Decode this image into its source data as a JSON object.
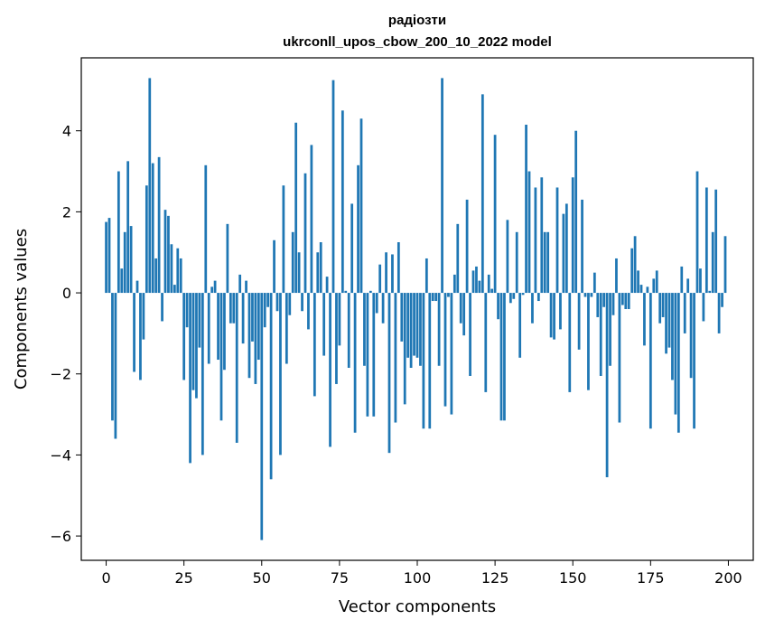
{
  "chart_data": {
    "type": "bar",
    "title": "радіозти",
    "subtitle": "ukrconll_upos_cbow_200_10_2022 model",
    "xlabel": "Vector components",
    "ylabel": "Components values",
    "xlim": [
      -8,
      208
    ],
    "ylim": [
      -6.6,
      5.8
    ],
    "xticks": [
      0,
      25,
      50,
      75,
      100,
      125,
      150,
      175,
      200
    ],
    "yticks": [
      -6,
      -4,
      -2,
      0,
      2,
      4
    ],
    "xtick_labels": [
      "0",
      "25",
      "50",
      "75",
      "100",
      "125",
      "150",
      "175",
      "200"
    ],
    "ytick_labels": [
      "−6",
      "−4",
      "−2",
      "0",
      "2",
      "4"
    ],
    "bar_color": "#1f77b4",
    "grid": false,
    "x": [
      0,
      1,
      2,
      3,
      4,
      5,
      6,
      7,
      8,
      9,
      10,
      11,
      12,
      13,
      14,
      15,
      16,
      17,
      18,
      19,
      20,
      21,
      22,
      23,
      24,
      25,
      26,
      27,
      28,
      29,
      30,
      31,
      32,
      33,
      34,
      35,
      36,
      37,
      38,
      39,
      40,
      41,
      42,
      43,
      44,
      45,
      46,
      47,
      48,
      49,
      50,
      51,
      52,
      53,
      54,
      55,
      56,
      57,
      58,
      59,
      60,
      61,
      62,
      63,
      64,
      65,
      66,
      67,
      68,
      69,
      70,
      71,
      72,
      73,
      74,
      75,
      76,
      77,
      78,
      79,
      80,
      81,
      82,
      83,
      84,
      85,
      86,
      87,
      88,
      89,
      90,
      91,
      92,
      93,
      94,
      95,
      96,
      97,
      98,
      99,
      100,
      101,
      102,
      103,
      104,
      105,
      106,
      107,
      108,
      109,
      110,
      111,
      112,
      113,
      114,
      115,
      116,
      117,
      118,
      119,
      120,
      121,
      122,
      123,
      124,
      125,
      126,
      127,
      128,
      129,
      130,
      131,
      132,
      133,
      134,
      135,
      136,
      137,
      138,
      139,
      140,
      141,
      142,
      143,
      144,
      145,
      146,
      147,
      148,
      149,
      150,
      151,
      152,
      153,
      154,
      155,
      156,
      157,
      158,
      159,
      160,
      161,
      162,
      163,
      164,
      165,
      166,
      167,
      168,
      169,
      170,
      171,
      172,
      173,
      174,
      175,
      176,
      177,
      178,
      179,
      180,
      181,
      182,
      183,
      184,
      185,
      186,
      187,
      188,
      189,
      190,
      191,
      192,
      193,
      194,
      195,
      196,
      197,
      198,
      199
    ],
    "values": [
      1.75,
      1.85,
      -3.15,
      -3.6,
      3.0,
      0.6,
      1.5,
      3.25,
      1.65,
      -1.95,
      0.3,
      -2.15,
      -1.15,
      2.65,
      5.3,
      3.2,
      0.85,
      3.35,
      -0.7,
      2.05,
      1.9,
      1.2,
      0.2,
      1.1,
      0.85,
      -2.15,
      -0.85,
      -4.2,
      -2.4,
      -2.6,
      -1.35,
      -4.0,
      3.15,
      -1.75,
      0.15,
      0.3,
      -1.65,
      -3.15,
      -1.9,
      1.7,
      -0.75,
      -0.75,
      -3.7,
      0.45,
      -1.25,
      0.3,
      -2.1,
      -1.2,
      -2.25,
      -1.65,
      -6.1,
      -0.85,
      -0.35,
      -4.6,
      1.3,
      -0.45,
      -4.0,
      2.65,
      -1.75,
      -0.55,
      1.5,
      4.2,
      1.0,
      -0.45,
      2.95,
      -0.9,
      3.65,
      -2.55,
      1.0,
      1.25,
      -1.55,
      0.4,
      -3.8,
      5.25,
      -2.25,
      -1.3,
      4.5,
      0.05,
      -1.85,
      2.2,
      -3.45,
      3.15,
      4.3,
      -1.8,
      -3.05,
      0.05,
      -3.05,
      -0.5,
      0.7,
      -0.75,
      1.0,
      -3.95,
      0.95,
      -3.2,
      1.25,
      -1.2,
      -2.75,
      -1.6,
      -1.85,
      -1.55,
      -1.6,
      -1.8,
      -3.35,
      0.85,
      -3.35,
      -0.2,
      -0.2,
      -1.8,
      5.3,
      -2.8,
      -0.1,
      -3.0,
      0.45,
      1.7,
      -0.75,
      -1.05,
      2.3,
      -2.05,
      0.55,
      0.65,
      0.3,
      4.9,
      -2.45,
      0.45,
      0.1,
      3.9,
      -0.65,
      -3.15,
      -3.15,
      1.8,
      -0.25,
      -0.15,
      1.5,
      -1.6,
      -0.05,
      4.15,
      3.0,
      -0.75,
      2.6,
      -0.2,
      2.85,
      1.5,
      1.5,
      -1.1,
      -1.15,
      2.6,
      -0.9,
      1.95,
      2.2,
      -2.45,
      2.85,
      4.0,
      -1.4,
      2.3,
      -0.1,
      -2.4,
      -0.1,
      0.5,
      -0.6,
      -2.05,
      -0.35,
      -4.55,
      -1.8,
      -0.55,
      0.85,
      -3.2,
      -0.3,
      -0.4,
      -0.4,
      1.1,
      1.4,
      0.55,
      0.2,
      -1.3,
      0.15,
      -3.35,
      0.35,
      0.55,
      -0.75,
      -0.6,
      -1.5,
      -1.35,
      -2.15,
      -3.0,
      -3.45,
      0.65,
      -1.0,
      0.35,
      -2.1,
      -3.35,
      3.0,
      0.6,
      -0.7,
      2.6,
      0.05,
      1.5,
      2.55,
      -1.0,
      -0.35,
      1.4
    ]
  }
}
